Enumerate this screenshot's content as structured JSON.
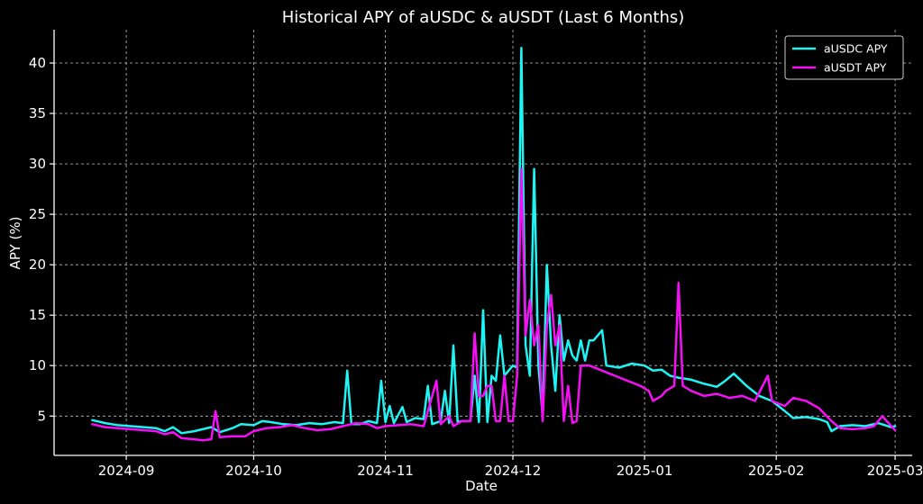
{
  "chart_data": {
    "type": "line",
    "title": "Historical APY of aUSDC & aUSDT (Last 6 Months)",
    "xlabel": "Date",
    "ylabel": "APY (%)",
    "xlim": [
      "2024-08-15",
      "2025-03-05"
    ],
    "ylim": [
      1.1,
      43.3
    ],
    "xticks": [
      "2024-09-01",
      "2024-10-01",
      "2024-11-01",
      "2024-12-01",
      "2025-01-01",
      "2025-02-01",
      "2025-03-01"
    ],
    "xtick_labels": [
      "2024-09",
      "2024-10",
      "2024-11",
      "2024-12",
      "2025-01",
      "2025-02",
      "2025-03"
    ],
    "yticks": [
      5,
      10,
      15,
      20,
      25,
      30,
      35,
      40
    ],
    "ytick_labels": [
      "5",
      "10",
      "15",
      "20",
      "25",
      "30",
      "35",
      "40"
    ],
    "grid": true,
    "legend_position": "top-right",
    "background": "#000000",
    "series": [
      {
        "name": "aUSDC APY",
        "color": "#1ef4f4",
        "points": [
          [
            "2024-08-24",
            4.6
          ],
          [
            "2024-08-27",
            4.3
          ],
          [
            "2024-08-30",
            4.1
          ],
          [
            "2024-09-02",
            4.0
          ],
          [
            "2024-09-05",
            3.9
          ],
          [
            "2024-09-08",
            3.8
          ],
          [
            "2024-09-10",
            3.5
          ],
          [
            "2024-09-12",
            3.9
          ],
          [
            "2024-09-14",
            3.3
          ],
          [
            "2024-09-17",
            3.5
          ],
          [
            "2024-09-19",
            3.7
          ],
          [
            "2024-09-21",
            3.9
          ],
          [
            "2024-09-23",
            3.4
          ],
          [
            "2024-09-26",
            3.8
          ],
          [
            "2024-09-28",
            4.2
          ],
          [
            "2024-10-01",
            4.1
          ],
          [
            "2024-10-03",
            4.5
          ],
          [
            "2024-10-05",
            4.4
          ],
          [
            "2024-10-08",
            4.2
          ],
          [
            "2024-10-11",
            4.1
          ],
          [
            "2024-10-14",
            4.3
          ],
          [
            "2024-10-17",
            4.2
          ],
          [
            "2024-10-20",
            4.4
          ],
          [
            "2024-10-22",
            4.3
          ],
          [
            "2024-10-23",
            9.5
          ],
          [
            "2024-10-24",
            4.2
          ],
          [
            "2024-10-26",
            4.2
          ],
          [
            "2024-10-28",
            4.5
          ],
          [
            "2024-10-30",
            4.3
          ],
          [
            "2024-10-31",
            8.5
          ],
          [
            "2024-11-01",
            4.4
          ],
          [
            "2024-11-02",
            6.0
          ],
          [
            "2024-11-03",
            4.3
          ],
          [
            "2024-11-05",
            5.9
          ],
          [
            "2024-11-06",
            4.4
          ],
          [
            "2024-11-08",
            4.8
          ],
          [
            "2024-11-10",
            4.7
          ],
          [
            "2024-11-11",
            8.0
          ],
          [
            "2024-11-12",
            4.2
          ],
          [
            "2024-11-14",
            4.5
          ],
          [
            "2024-11-15",
            7.5
          ],
          [
            "2024-11-16",
            4.3
          ],
          [
            "2024-11-17",
            12.0
          ],
          [
            "2024-11-18",
            4.4
          ],
          [
            "2024-11-19",
            4.5
          ],
          [
            "2024-11-21",
            4.5
          ],
          [
            "2024-11-22",
            9.0
          ],
          [
            "2024-11-23",
            4.4
          ],
          [
            "2024-11-24",
            15.5
          ],
          [
            "2024-11-25",
            4.4
          ],
          [
            "2024-11-26",
            9.0
          ],
          [
            "2024-11-27",
            8.5
          ],
          [
            "2024-11-28",
            13.0
          ],
          [
            "2024-11-29",
            9.0
          ],
          [
            "2024-11-30",
            9.5
          ],
          [
            "2024-12-01",
            10.0
          ],
          [
            "2024-12-02",
            9.8
          ],
          [
            "2024-12-03",
            41.5
          ],
          [
            "2024-12-04",
            12.0
          ],
          [
            "2024-12-05",
            9.0
          ],
          [
            "2024-12-06",
            29.5
          ],
          [
            "2024-12-07",
            10.0
          ],
          [
            "2024-12-08",
            5.0
          ],
          [
            "2024-12-09",
            20.0
          ],
          [
            "2024-12-10",
            12.0
          ],
          [
            "2024-12-11",
            7.5
          ],
          [
            "2024-12-12",
            15.0
          ],
          [
            "2024-12-13",
            10.5
          ],
          [
            "2024-12-14",
            12.5
          ],
          [
            "2024-12-15",
            11.0
          ],
          [
            "2024-12-16",
            10.5
          ],
          [
            "2024-12-17",
            12.5
          ],
          [
            "2024-12-18",
            10.5
          ],
          [
            "2024-12-19",
            12.5
          ],
          [
            "2024-12-20",
            12.5
          ],
          [
            "2024-12-22",
            13.5
          ],
          [
            "2024-12-23",
            10.0
          ],
          [
            "2024-12-26",
            9.8
          ],
          [
            "2024-12-29",
            10.2
          ],
          [
            "2025-01-01",
            10.0
          ],
          [
            "2025-01-03",
            9.5
          ],
          [
            "2025-01-05",
            9.6
          ],
          [
            "2025-01-07",
            9.0
          ],
          [
            "2025-01-09",
            8.8
          ],
          [
            "2025-01-12",
            8.6
          ],
          [
            "2025-01-15",
            8.2
          ],
          [
            "2025-01-18",
            7.9
          ],
          [
            "2025-01-20",
            8.5
          ],
          [
            "2025-01-22",
            9.2
          ],
          [
            "2025-01-25",
            8.0
          ],
          [
            "2025-01-28",
            7.0
          ],
          [
            "2025-01-31",
            6.5
          ],
          [
            "2025-02-03",
            5.5
          ],
          [
            "2025-02-05",
            4.8
          ],
          [
            "2025-02-08",
            4.9
          ],
          [
            "2025-02-11",
            4.7
          ],
          [
            "2025-02-13",
            4.4
          ],
          [
            "2025-02-14",
            3.5
          ],
          [
            "2025-02-16",
            4.0
          ],
          [
            "2025-02-19",
            4.1
          ],
          [
            "2025-02-22",
            4.0
          ],
          [
            "2025-02-25",
            4.3
          ],
          [
            "2025-02-28",
            3.9
          ],
          [
            "2025-03-01",
            4.0
          ]
        ]
      },
      {
        "name": "aUSDT APY",
        "color": "#f50ff5",
        "points": [
          [
            "2024-08-24",
            4.2
          ],
          [
            "2024-08-27",
            3.9
          ],
          [
            "2024-08-30",
            3.8
          ],
          [
            "2024-09-02",
            3.7
          ],
          [
            "2024-09-05",
            3.6
          ],
          [
            "2024-09-08",
            3.5
          ],
          [
            "2024-09-10",
            3.2
          ],
          [
            "2024-09-12",
            3.4
          ],
          [
            "2024-09-14",
            2.8
          ],
          [
            "2024-09-17",
            2.7
          ],
          [
            "2024-09-19",
            2.6
          ],
          [
            "2024-09-21",
            2.7
          ],
          [
            "2024-09-22",
            5.5
          ],
          [
            "2024-09-23",
            2.9
          ],
          [
            "2024-09-26",
            3.0
          ],
          [
            "2024-09-29",
            3.0
          ],
          [
            "2024-10-01",
            3.5
          ],
          [
            "2024-10-04",
            3.8
          ],
          [
            "2024-10-07",
            3.9
          ],
          [
            "2024-10-10",
            4.1
          ],
          [
            "2024-10-13",
            3.8
          ],
          [
            "2024-10-16",
            3.6
          ],
          [
            "2024-10-19",
            3.7
          ],
          [
            "2024-10-22",
            4.0
          ],
          [
            "2024-10-25",
            4.3
          ],
          [
            "2024-10-28",
            4.2
          ],
          [
            "2024-10-30",
            3.8
          ],
          [
            "2024-11-01",
            4.0
          ],
          [
            "2024-11-04",
            4.1
          ],
          [
            "2024-11-07",
            4.2
          ],
          [
            "2024-11-10",
            4.0
          ],
          [
            "2024-11-13",
            8.5
          ],
          [
            "2024-11-14",
            4.2
          ],
          [
            "2024-11-16",
            5.0
          ],
          [
            "2024-11-17",
            4.0
          ],
          [
            "2024-11-19",
            4.5
          ],
          [
            "2024-11-21",
            4.5
          ],
          [
            "2024-11-22",
            13.2
          ],
          [
            "2024-11-23",
            7.0
          ],
          [
            "2024-11-24",
            7.0
          ],
          [
            "2024-11-25",
            8.0
          ],
          [
            "2024-11-26",
            8.0
          ],
          [
            "2024-11-27",
            4.5
          ],
          [
            "2024-11-28",
            4.5
          ],
          [
            "2024-11-29",
            9.0
          ],
          [
            "2024-11-30",
            4.5
          ],
          [
            "2024-12-01",
            4.5
          ],
          [
            "2024-12-02",
            9.0
          ],
          [
            "2024-12-03",
            29.5
          ],
          [
            "2024-12-04",
            13.0
          ],
          [
            "2024-12-05",
            16.5
          ],
          [
            "2024-12-06",
            12.0
          ],
          [
            "2024-12-07",
            14.0
          ],
          [
            "2024-12-08",
            4.5
          ],
          [
            "2024-12-09",
            14.0
          ],
          [
            "2024-12-10",
            17.0
          ],
          [
            "2024-12-11",
            12.0
          ],
          [
            "2024-12-12",
            14.0
          ],
          [
            "2024-12-13",
            4.5
          ],
          [
            "2024-12-14",
            8.0
          ],
          [
            "2024-12-15",
            4.3
          ],
          [
            "2024-12-16",
            4.5
          ],
          [
            "2024-12-17",
            10.0
          ],
          [
            "2024-12-19",
            10.0
          ],
          [
            "2024-12-22",
            9.5
          ],
          [
            "2024-12-25",
            9.0
          ],
          [
            "2024-12-28",
            8.5
          ],
          [
            "2024-12-31",
            8.0
          ],
          [
            "2025-01-02",
            7.5
          ],
          [
            "2025-01-03",
            6.5
          ],
          [
            "2025-01-05",
            7.0
          ],
          [
            "2025-01-06",
            7.5
          ],
          [
            "2025-01-08",
            8.0
          ],
          [
            "2025-01-09",
            18.2
          ],
          [
            "2025-01-10",
            8.0
          ],
          [
            "2025-01-12",
            7.5
          ],
          [
            "2025-01-15",
            7.0
          ],
          [
            "2025-01-18",
            7.2
          ],
          [
            "2025-01-21",
            6.8
          ],
          [
            "2025-01-24",
            7.0
          ],
          [
            "2025-01-27",
            6.5
          ],
          [
            "2025-01-30",
            9.0
          ],
          [
            "2025-01-31",
            6.5
          ],
          [
            "2025-02-03",
            6.0
          ],
          [
            "2025-02-05",
            6.8
          ],
          [
            "2025-02-08",
            6.5
          ],
          [
            "2025-02-11",
            5.8
          ],
          [
            "2025-02-14",
            4.5
          ],
          [
            "2025-02-16",
            3.8
          ],
          [
            "2025-02-19",
            3.7
          ],
          [
            "2025-02-22",
            3.8
          ],
          [
            "2025-02-24",
            4.0
          ],
          [
            "2025-02-26",
            5.0
          ],
          [
            "2025-02-27",
            4.5
          ],
          [
            "2025-03-01",
            3.6
          ]
        ]
      }
    ]
  }
}
